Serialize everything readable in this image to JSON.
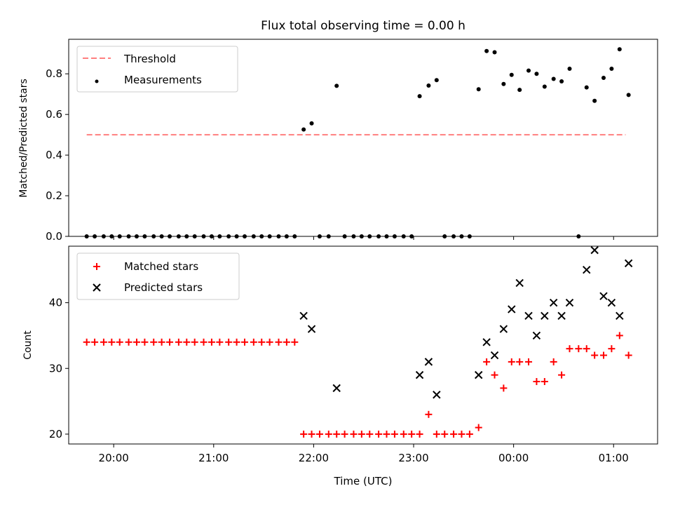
{
  "chart_data": [
    {
      "type": "scatter",
      "title": "Flux total observing time = 0.00 h",
      "xlabel": "",
      "ylabel": "Matched/Predicted stars",
      "ylim": [
        0,
        0.97
      ],
      "yticks": [
        0.0,
        0.2,
        0.4,
        0.6,
        0.8
      ],
      "ytick_labels": [
        "0.0",
        "0.2",
        "0.4",
        "0.6",
        "0.8"
      ],
      "xlim_hours": [
        19.55,
        25.44
      ],
      "xticks_hours": [
        20,
        21,
        22,
        23,
        24,
        25
      ],
      "xtick_labels": [
        "",
        "",
        "",
        "",
        "",
        ""
      ],
      "legend_position": "top-left",
      "colors": {
        "threshold": "#ff7f7f",
        "measurements": "#000000"
      },
      "series": [
        {
          "name": "Threshold",
          "kind": "dashed-line",
          "x": [
            19.73,
            25.12
          ],
          "y": [
            0.5,
            0.5
          ]
        },
        {
          "name": "Measurements",
          "kind": "points",
          "x": [
            19.73,
            19.81,
            19.9,
            19.98,
            20.06,
            20.15,
            20.23,
            20.31,
            20.4,
            20.48,
            20.56,
            20.65,
            20.73,
            20.81,
            20.9,
            20.98,
            21.06,
            21.15,
            21.23,
            21.31,
            21.4,
            21.48,
            21.56,
            21.65,
            21.73,
            21.81,
            21.9,
            21.98,
            22.06,
            22.15,
            22.23,
            22.31,
            22.4,
            22.48,
            22.56,
            22.65,
            22.73,
            22.81,
            22.9,
            22.98,
            23.06,
            23.15,
            23.23,
            23.31,
            23.4,
            23.48,
            23.56,
            23.65,
            23.73,
            23.81,
            23.9,
            23.98,
            24.06,
            24.15,
            24.23,
            24.31,
            24.4,
            24.48,
            24.56,
            24.65,
            24.73,
            24.81,
            24.9,
            24.98,
            25.06,
            25.15
          ],
          "y": [
            0.0,
            0.0,
            0.0,
            0.0,
            0.0,
            0.0,
            0.0,
            0.0,
            0.0,
            0.0,
            0.0,
            0.0,
            0.0,
            0.0,
            0.0,
            0.0,
            0.0,
            0.0,
            0.0,
            0.0,
            0.0,
            0.0,
            0.0,
            0.0,
            0.0,
            0.0,
            0.526,
            0.556,
            0.0,
            0.0,
            0.741,
            0.0,
            0.0,
            0.0,
            0.0,
            0.0,
            0.0,
            0.0,
            0.0,
            0.0,
            0.69,
            0.742,
            0.769,
            0.0,
            0.0,
            0.0,
            0.0,
            0.724,
            0.912,
            0.906,
            0.75,
            0.795,
            0.721,
            0.816,
            0.8,
            0.737,
            0.775,
            0.763,
            0.825,
            0.0,
            0.733,
            0.667,
            0.78,
            0.825,
            0.921,
            0.696
          ]
        }
      ]
    },
    {
      "type": "scatter",
      "title": "",
      "xlabel": "Time (UTC)",
      "ylabel": "Count",
      "ylim": [
        18.5,
        48.6
      ],
      "yticks": [
        20,
        30,
        40
      ],
      "ytick_labels": [
        "20",
        "30",
        "40"
      ],
      "xlim_hours": [
        19.55,
        25.44
      ],
      "xticks_hours": [
        20,
        21,
        22,
        23,
        24,
        25
      ],
      "xtick_labels": [
        "20:00",
        "21:00",
        "22:00",
        "23:00",
        "00:00",
        "01:00"
      ],
      "legend_position": "top-left",
      "colors": {
        "matched": "#ff0000",
        "predicted": "#000000"
      },
      "series": [
        {
          "name": "Matched stars",
          "marker": "plus",
          "x": [
            19.73,
            19.81,
            19.9,
            19.98,
            20.06,
            20.15,
            20.23,
            20.31,
            20.4,
            20.48,
            20.56,
            20.65,
            20.73,
            20.81,
            20.9,
            20.98,
            21.06,
            21.15,
            21.23,
            21.31,
            21.4,
            21.48,
            21.56,
            21.65,
            21.73,
            21.81,
            21.9,
            21.98,
            22.06,
            22.15,
            22.23,
            22.31,
            22.4,
            22.48,
            22.56,
            22.65,
            22.73,
            22.81,
            22.9,
            22.98,
            23.06,
            23.15,
            23.23,
            23.31,
            23.4,
            23.48,
            23.56,
            23.65,
            23.73,
            23.81,
            23.9,
            23.98,
            24.06,
            24.15,
            24.23,
            24.31,
            24.4,
            24.48,
            24.56,
            24.65,
            24.73,
            24.81,
            24.9,
            24.98,
            25.06,
            25.15
          ],
          "y": [
            34,
            34,
            34,
            34,
            34,
            34,
            34,
            34,
            34,
            34,
            34,
            34,
            34,
            34,
            34,
            34,
            34,
            34,
            34,
            34,
            34,
            34,
            34,
            34,
            34,
            34,
            20,
            20,
            20,
            20,
            20,
            20,
            20,
            20,
            20,
            20,
            20,
            20,
            20,
            20,
            20,
            23,
            20,
            20,
            20,
            20,
            20,
            21,
            31,
            29,
            27,
            31,
            31,
            31,
            28,
            28,
            31,
            29,
            33,
            33,
            33,
            32,
            32,
            33,
            35,
            32
          ]
        },
        {
          "name": "Predicted stars",
          "marker": "x",
          "x": [
            21.9,
            21.98,
            22.23,
            23.06,
            23.15,
            23.23,
            23.65,
            23.73,
            23.81,
            23.9,
            23.98,
            24.06,
            24.15,
            24.23,
            24.31,
            24.4,
            24.48,
            24.56,
            24.73,
            24.81,
            24.9,
            24.98,
            25.06,
            25.15
          ],
          "y": [
            38,
            36,
            27,
            29,
            31,
            26,
            29,
            34,
            32,
            36,
            39,
            43,
            38,
            35,
            38,
            40,
            38,
            40,
            45,
            48,
            41,
            40,
            38,
            46
          ]
        }
      ]
    }
  ]
}
